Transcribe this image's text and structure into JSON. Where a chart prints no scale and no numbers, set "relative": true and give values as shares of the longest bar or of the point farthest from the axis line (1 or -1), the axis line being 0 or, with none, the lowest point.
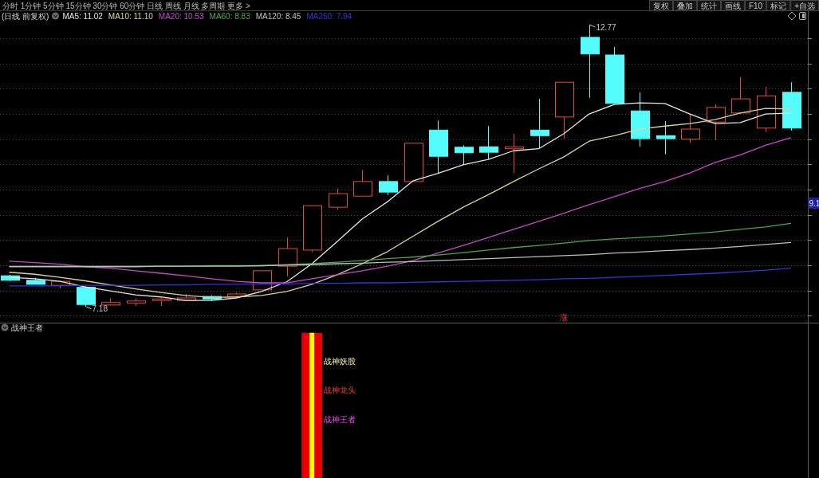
{
  "chart_data": [
    {
      "type": "candlestick",
      "title": "(日线 前复权)",
      "categories": [
        null,
        null,
        null,
        null,
        null,
        null,
        null,
        null,
        null,
        null,
        null,
        null,
        null,
        null,
        null,
        null,
        null,
        null,
        null,
        null,
        null,
        null,
        null,
        null,
        null,
        null,
        null,
        null,
        null,
        null,
        null,
        null
      ],
      "ohlc": [
        [
          7.79,
          7.81,
          7.69,
          7.7
        ],
        [
          7.7,
          7.75,
          7.62,
          7.62
        ],
        [
          7.6,
          7.68,
          7.54,
          7.68
        ],
        [
          7.56,
          7.58,
          7.18,
          7.22
        ],
        [
          7.21,
          7.34,
          7.2,
          7.26
        ],
        [
          7.25,
          7.34,
          7.19,
          7.29
        ],
        [
          7.3,
          7.35,
          7.19,
          7.33
        ],
        [
          7.3,
          7.43,
          7.3,
          7.35
        ],
        [
          7.38,
          7.4,
          7.3,
          7.33
        ],
        [
          7.38,
          7.46,
          7.38,
          7.43
        ],
        [
          7.51,
          7.89,
          7.51,
          7.89
        ],
        [
          7.98,
          8.55,
          7.78,
          8.33
        ],
        [
          8.3,
          9.18,
          8.26,
          9.18
        ],
        [
          9.15,
          9.52,
          9.1,
          9.42
        ],
        [
          9.37,
          9.89,
          9.37,
          9.66
        ],
        [
          9.66,
          9.78,
          9.39,
          9.45
        ],
        [
          9.66,
          10.42,
          9.66,
          10.42
        ],
        [
          10.68,
          10.87,
          9.82,
          10.16
        ],
        [
          10.34,
          10.38,
          9.99,
          10.23
        ],
        [
          10.35,
          10.76,
          10.1,
          10.24
        ],
        [
          10.31,
          10.61,
          9.83,
          10.35
        ],
        [
          10.68,
          11.3,
          10.32,
          10.57
        ],
        [
          10.94,
          11.63,
          10.51,
          11.63
        ],
        [
          12.52,
          12.77,
          11.32,
          12.19
        ],
        [
          12.17,
          12.33,
          11.21,
          11.21
        ],
        [
          11.06,
          11.43,
          10.35,
          10.51
        ],
        [
          10.57,
          10.86,
          10.2,
          10.51
        ],
        [
          10.5,
          11.0,
          10.43,
          10.7
        ],
        [
          10.84,
          11.19,
          10.48,
          11.13
        ],
        [
          11.02,
          11.73,
          11.02,
          11.3
        ],
        [
          10.72,
          11.54,
          10.64,
          11.36
        ],
        [
          11.43,
          11.63,
          10.67,
          10.72
        ]
      ],
      "colors": [
        "#54fcfc",
        "#54fcfc",
        "#e8463c",
        "#54fcfc",
        "#e8463c",
        "#e8463c",
        "#e8463c",
        "#e8463c",
        "#54fcfc",
        "#e8463c",
        "#e8463c",
        "#e8463c",
        "#e8463c",
        "#e8463c",
        "#e8463c",
        "#54fcfc",
        "#e8463c",
        "#54fcfc",
        "#54fcfc",
        "#54fcfc",
        "#e8463c",
        "#54fcfc",
        "#e8463c",
        "#54fcfc",
        "#54fcfc",
        "#54fcfc",
        "#54fcfc",
        "#e8463c",
        "#e8463c",
        "#e8463c",
        "#e8463c",
        "#54fcfc"
      ],
      "series": [
        {
          "name": "MA5: 11.02",
          "type": "line",
          "color": "#e6e6e6",
          "values": [
            7.76,
            7.73,
            7.68,
            7.57,
            7.49,
            7.41,
            7.37,
            7.3,
            7.3,
            7.35,
            7.48,
            7.67,
            8.03,
            8.47,
            8.92,
            9.26,
            9.67,
            9.82,
            9.99,
            10.1,
            10.27,
            10.31,
            10.61,
            11.0,
            11.19,
            11.22,
            11.21,
            11.0,
            10.81,
            10.83,
            11.0,
            11.02
          ]
        },
        {
          "name": "MA10: 11.10",
          "type": "line",
          "color": "#dcd49c",
          "values": [
            7.86,
            7.82,
            7.76,
            7.69,
            7.61,
            7.53,
            7.46,
            7.4,
            7.36,
            7.37,
            7.4,
            7.48,
            7.62,
            7.81,
            8.03,
            8.27,
            8.57,
            8.87,
            9.15,
            9.4,
            9.66,
            9.91,
            10.15,
            10.46,
            10.57,
            10.7,
            10.76,
            10.81,
            10.89,
            11.02,
            11.11,
            11.1
          ]
        },
        {
          "name": "MA20: 10.53",
          "type": "line",
          "color": "#c848c8",
          "values": [
            8.08,
            8.05,
            8.02,
            7.97,
            7.94,
            7.89,
            7.84,
            7.79,
            7.73,
            7.68,
            7.65,
            7.65,
            7.73,
            7.81,
            7.89,
            7.98,
            8.09,
            8.24,
            8.39,
            8.55,
            8.71,
            8.87,
            9.03,
            9.2,
            9.36,
            9.52,
            9.66,
            9.83,
            10.04,
            10.19,
            10.38,
            10.53
          ]
        },
        {
          "name": "MA60: 8.83",
          "type": "line",
          "color": "#48a848",
          "values": [
            7.98,
            7.98,
            7.98,
            7.98,
            7.98,
            7.98,
            7.98,
            7.98,
            7.99,
            7.99,
            7.99,
            8.01,
            8.03,
            8.06,
            8.09,
            8.13,
            8.16,
            8.2,
            8.25,
            8.3,
            8.35,
            8.39,
            8.44,
            8.49,
            8.52,
            8.55,
            8.58,
            8.62,
            8.66,
            8.71,
            8.76,
            8.83
          ]
        },
        {
          "name": "MA120: 8.45",
          "type": "line",
          "color": "#bebebe",
          "values": [
            7.97,
            7.97,
            7.97,
            7.97,
            7.97,
            7.97,
            7.98,
            7.98,
            7.98,
            7.98,
            7.99,
            8.0,
            8.01,
            8.03,
            8.04,
            8.06,
            8.07,
            8.09,
            8.11,
            8.13,
            8.15,
            8.17,
            8.19,
            8.21,
            8.24,
            8.26,
            8.29,
            8.31,
            8.34,
            8.37,
            8.41,
            8.45
          ]
        },
        {
          "name": "MA250: 7.94",
          "type": "line",
          "color": "#3434d8",
          "values": [
            7.59,
            7.59,
            7.59,
            7.6,
            7.6,
            7.6,
            7.61,
            7.61,
            7.62,
            7.62,
            7.63,
            7.63,
            7.64,
            7.64,
            7.65,
            7.65,
            7.66,
            7.67,
            7.68,
            7.69,
            7.7,
            7.71,
            7.73,
            7.74,
            7.76,
            7.78,
            7.8,
            7.82,
            7.84,
            7.87,
            7.9,
            7.94
          ]
        }
      ],
      "ylim": [
        6.86,
        13.04
      ],
      "yticks": [
        {
          "value": 7,
          "label": null
        },
        {
          "value": 7.5,
          "label": null
        },
        {
          "value": 8,
          "label": null
        },
        {
          "value": 8.5,
          "label": null
        },
        {
          "value": 9,
          "label": null
        },
        {
          "value": 9.5,
          "label": null
        },
        {
          "value": 10,
          "label": null
        },
        {
          "value": 10.5,
          "label": null
        },
        {
          "value": 11,
          "label": null
        },
        {
          "value": 11.5,
          "label": null
        },
        {
          "value": 12,
          "label": null
        },
        {
          "value": 12.5,
          "label": null
        }
      ],
      "grid": "y",
      "legend": "top left",
      "value_labels": [
        null,
        null,
        null,
        "7.18",
        null,
        null,
        null,
        null,
        null,
        null,
        null,
        null,
        null,
        null,
        null,
        null,
        null,
        null,
        null,
        null,
        null,
        null,
        "涨",
        "12.77",
        null,
        null,
        null,
        null,
        null,
        null,
        null,
        null
      ],
      "annotations": [
        "分时 1分钟 5分钟 15分钟 30分钟 60分钟 日线 周线 月线 多周期 更多 >",
        "复权 叠加 统计 画线 F10 标记 +自选",
        "9.1"
      ]
    },
    {
      "type": "bar",
      "title": "战神王者",
      "categories": [
        null,
        null,
        null,
        null,
        null,
        null,
        null,
        null,
        null,
        null,
        null,
        null,
        null,
        null,
        null,
        null,
        null,
        null,
        null,
        null,
        null,
        null,
        null,
        null,
        null,
        null,
        null,
        null,
        null,
        null,
        null,
        null
      ],
      "relative": true,
      "series": [
        {
          "color": "#e60000",
          "values": [
            null,
            null,
            null,
            null,
            null,
            null,
            null,
            null,
            null,
            null,
            null,
            null,
            1,
            null,
            null,
            null,
            null,
            null,
            null,
            null,
            null,
            null,
            null,
            null,
            null,
            null,
            null,
            null,
            null,
            null,
            null,
            null
          ]
        },
        {
          "color": "#ffff00",
          "values": [
            null,
            null,
            null,
            null,
            null,
            null,
            null,
            null,
            null,
            null,
            null,
            null,
            1,
            null,
            null,
            null,
            null,
            null,
            null,
            null,
            null,
            null,
            null,
            null,
            null,
            null,
            null,
            null,
            null,
            null,
            null,
            null
          ]
        }
      ],
      "annotations": [
        "战神妖股",
        "战神龙头",
        "战神王者"
      ]
    }
  ]
}
